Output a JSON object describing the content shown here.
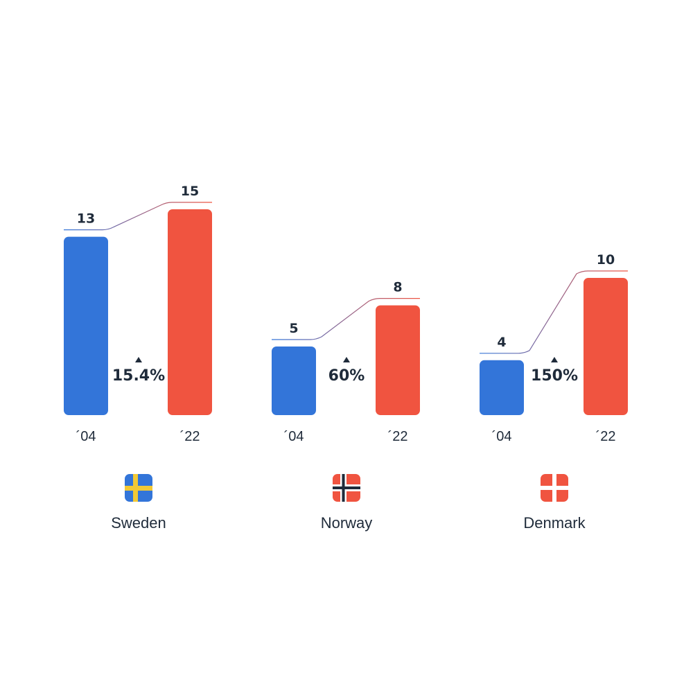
{
  "chart_data": {
    "type": "bar",
    "periods": [
      "´04",
      "´22"
    ],
    "colors": {
      "start": "#3375d9",
      "end": "#f05440",
      "text": "#1f2b3a",
      "flag_yellow": "#f2c935",
      "flag_navy": "#1f2b3a",
      "flag_white": "#ffffff"
    },
    "groups": [
      {
        "country": "Sweden",
        "flag": "sweden-flag-icon",
        "values": [
          13,
          15
        ],
        "change": "15.4%",
        "direction": "up"
      },
      {
        "country": "Norway",
        "flag": "norway-flag-icon",
        "values": [
          5,
          8
        ],
        "change": "60%",
        "direction": "up"
      },
      {
        "country": "Denmark",
        "flag": "denmark-flag-icon",
        "values": [
          4,
          10
        ],
        "change": "150%",
        "direction": "up"
      }
    ]
  }
}
